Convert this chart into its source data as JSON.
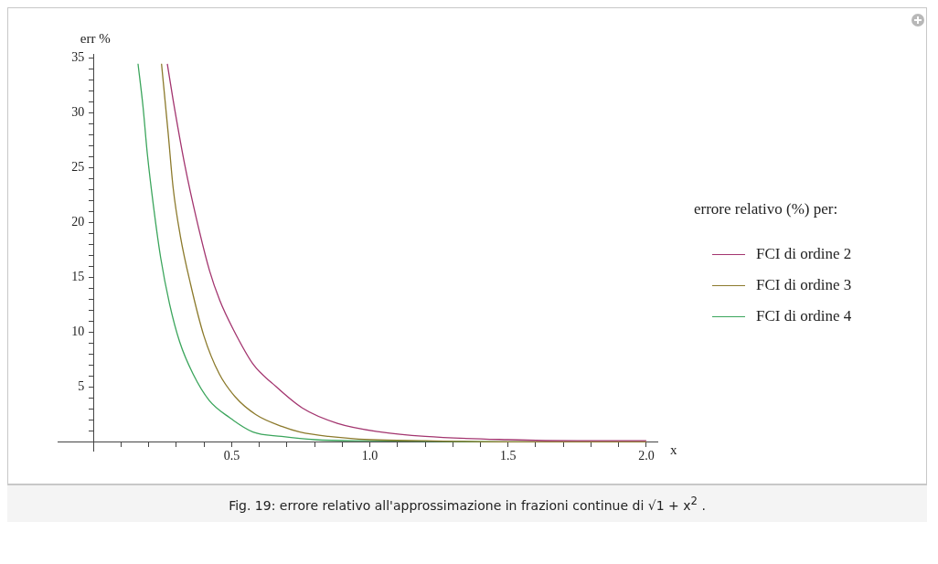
{
  "chart_data": {
    "type": "line",
    "xlabel": "x",
    "ylabel": "err %",
    "legend_title": "errore relativo (%) per:",
    "legend": "right",
    "grid": false,
    "marker": "none",
    "xlim": [
      -0.13,
      2.04
    ],
    "ylim": [
      -0.8,
      35.4
    ],
    "xticks": [
      {
        "value": 0.1,
        "label": null
      },
      {
        "value": 0.2,
        "label": null
      },
      {
        "value": 0.3,
        "label": null
      },
      {
        "value": 0.4,
        "label": null
      },
      {
        "value": 0.5,
        "label": "0.5"
      },
      {
        "value": 0.6,
        "label": null
      },
      {
        "value": 0.7,
        "label": null
      },
      {
        "value": 0.8,
        "label": null
      },
      {
        "value": 0.9,
        "label": null
      },
      {
        "value": 1,
        "label": "1.0"
      },
      {
        "value": 1.1,
        "label": null
      },
      {
        "value": 1.2,
        "label": null
      },
      {
        "value": 1.3,
        "label": null
      },
      {
        "value": 1.4,
        "label": null
      },
      {
        "value": 1.5,
        "label": "1.5"
      },
      {
        "value": 1.6,
        "label": null
      },
      {
        "value": 1.7,
        "label": null
      },
      {
        "value": 1.8,
        "label": null
      },
      {
        "value": 1.9,
        "label": null
      },
      {
        "value": 2,
        "label": "2.0"
      }
    ],
    "yticks": [
      {
        "value": 1,
        "label": null
      },
      {
        "value": 2,
        "label": null
      },
      {
        "value": 3,
        "label": null
      },
      {
        "value": 4,
        "label": null
      },
      5,
      {
        "value": 6,
        "label": null
      },
      {
        "value": 7,
        "label": null
      },
      {
        "value": 8,
        "label": null
      },
      {
        "value": 9,
        "label": null
      },
      10,
      {
        "value": 11,
        "label": null
      },
      {
        "value": 12,
        "label": null
      },
      {
        "value": 13,
        "label": null
      },
      {
        "value": 14,
        "label": null
      },
      15,
      {
        "value": 16,
        "label": null
      },
      {
        "value": 17,
        "label": null
      },
      {
        "value": 18,
        "label": null
      },
      {
        "value": 19,
        "label": null
      },
      20,
      {
        "value": 21,
        "label": null
      },
      {
        "value": 22,
        "label": null
      },
      {
        "value": 23,
        "label": null
      },
      {
        "value": 24,
        "label": null
      },
      25,
      {
        "value": 26,
        "label": null
      },
      {
        "value": 27,
        "label": null
      },
      {
        "value": 28,
        "label": null
      },
      {
        "value": 29,
        "label": null
      },
      30,
      {
        "value": 31,
        "label": null
      },
      {
        "value": 32,
        "label": null
      },
      {
        "value": 33,
        "label": null
      },
      {
        "value": 34,
        "label": null
      },
      35
    ],
    "series": [
      {
        "name": "FCI di ordine 2",
        "color": "#a3356f",
        "x": [
          0.267,
          0.288,
          0.33,
          0.373,
          0.42,
          0.457,
          0.505,
          0.58,
          0.649,
          0.755,
          0.882,
          1.04,
          1.2,
          1.5,
          1.75,
          2.0
        ],
        "values": [
          34.5,
          31.2,
          25.3,
          20.3,
          15.6,
          12.9,
          10.3,
          7.0,
          5.3,
          3.1,
          1.7,
          0.9,
          0.5,
          0.2,
          0.1,
          0.1
        ]
      },
      {
        "name": "FCI di ordine 3",
        "color": "#8c7a2c",
        "x": [
          0.246,
          0.27,
          0.288,
          0.314,
          0.351,
          0.399,
          0.455,
          0.513,
          0.587,
          0.683,
          0.747,
          0.85,
          1.0,
          1.2,
          1.5,
          2.0
        ],
        "values": [
          34.5,
          28.2,
          23.2,
          18.8,
          14.4,
          9.7,
          6.2,
          4.1,
          2.5,
          1.4,
          0.9,
          0.5,
          0.2,
          0.1,
          0,
          0
        ]
      },
      {
        "name": "FCI di ordine 4",
        "color": "#3ba55c",
        "x": [
          0.161,
          0.179,
          0.195,
          0.217,
          0.243,
          0.275,
          0.312,
          0.36,
          0.418,
          0.493,
          0.577,
          0.68,
          0.8,
          1.0,
          1.5,
          2.0
        ],
        "values": [
          34.5,
          30.6,
          26.2,
          21.5,
          16.8,
          12.6,
          9.1,
          6.2,
          3.8,
          2.2,
          0.9,
          0.5,
          0.2,
          0.1,
          0,
          0
        ]
      }
    ],
    "annotations": [
      "Fig. 19: errore relativo all'approssimazione in frazioni continue di √1 + x$^{2}$ ."
    ]
  }
}
